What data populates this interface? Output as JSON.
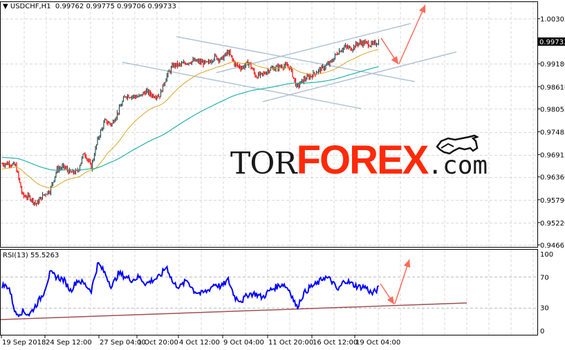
{
  "header": {
    "symbol_label": "USDCHF,H1",
    "ohlc": "0.99762 0.99775 0.99706 0.99733",
    "menu_icon": "triangle-down-icon"
  },
  "rsi_panel": {
    "label": "RSI(13) 55.5263"
  },
  "logo": {
    "tor": "TOR",
    "forex": "FOREX",
    "com": ".com",
    "icon": "bull-icon"
  },
  "colors": {
    "bull_candle": "#2f4f4f",
    "bear_candle": "#ff0000",
    "ma_fast": "#daa520",
    "ma_slow": "#20b2aa",
    "trendline": "#b0c4d4",
    "rsi_line": "#0000ff",
    "rsi_trendline": "#a05050",
    "forecast_arrow": "#ff6a5a",
    "grid": "#d8d8d8"
  },
  "chart_data": [
    {
      "type": "candlestick",
      "title": "USDCHF,H1",
      "price_ticks": [
        "1.00305",
        "0.99180",
        "0.98610",
        "0.98055",
        "0.97485",
        "0.96915",
        "0.96360",
        "0.95790",
        "0.95220",
        "0.94665"
      ],
      "current_price": "0.99733",
      "ylim": [
        0.94665,
        1.00305
      ],
      "x_tick_labels": [
        "19 Sep 2018",
        "24 Sep 12:00",
        "27 Sep 04:00",
        "1 Oct 20:00",
        "4 Oct 12:00",
        "9 Oct 04:00",
        "11 Oct 20:00",
        "16 Oct 12:00",
        "19 Oct 04:00"
      ],
      "closes": [
        0.96683,
        0.967,
        0.96631,
        0.95889,
        0.95855,
        0.95682,
        0.95906,
        0.96027,
        0.96544,
        0.96613,
        0.96458,
        0.96493,
        0.96976,
        0.96596,
        0.97321,
        0.97752,
        0.97666,
        0.98011,
        0.9839,
        0.98373,
        0.98356,
        0.98494,
        0.9839,
        0.9839,
        0.98873,
        0.99149,
        0.99149,
        0.99218,
        0.99253,
        0.99218,
        0.99184,
        0.99356,
        0.99287,
        0.99477,
        0.99166,
        0.9908,
        0.99218,
        0.98873,
        0.98908,
        0.99046,
        0.9908,
        0.99132,
        0.99097,
        0.98597,
        0.98787,
        0.98873,
        0.98994,
        0.99097,
        0.99218,
        0.99477,
        0.99598,
        0.99563,
        0.99701,
        0.99701,
        0.99649,
        0.99733
      ],
      "grid": true
    },
    {
      "type": "line",
      "title": "RSI(13) 55.5263",
      "ylim": [
        0,
        100
      ],
      "y_tick_labels": [
        "100",
        "70",
        "30",
        "0"
      ],
      "levels": [
        70,
        30
      ],
      "values": [
        59,
        57,
        21,
        25,
        21,
        34,
        48,
        75,
        70,
        66,
        52,
        66,
        61,
        52,
        88,
        75,
        57,
        75,
        70,
        66,
        70,
        61,
        66,
        70,
        84,
        61,
        57,
        66,
        52,
        48,
        52,
        61,
        57,
        66,
        43,
        39,
        48,
        48,
        43,
        52,
        57,
        61,
        52,
        30,
        48,
        57,
        61,
        70,
        66,
        52,
        66,
        61,
        57,
        57,
        48,
        55.5
      ]
    }
  ]
}
